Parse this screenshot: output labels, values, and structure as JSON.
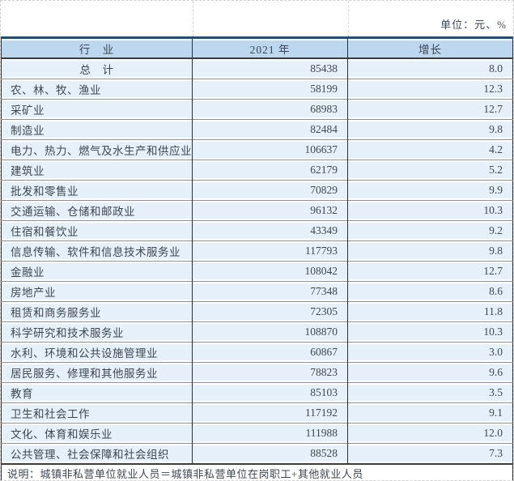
{
  "page": {
    "unit_label": "单位：元、%"
  },
  "table": {
    "columns": [
      {
        "label": "行　业"
      },
      {
        "label": "2021 年"
      },
      {
        "label": "增长"
      }
    ],
    "rows": [
      {
        "industry": "总　计",
        "value": "85438",
        "growth": "8.0",
        "total": true
      },
      {
        "industry": "农、林、牧、渔业",
        "value": "58199",
        "growth": "12.3"
      },
      {
        "industry": "采矿业",
        "value": "68983",
        "growth": "12.7"
      },
      {
        "industry": "制造业",
        "value": "82484",
        "growth": "9.8"
      },
      {
        "industry": "电力、热力、燃气及水生产和供应业",
        "value": "106637",
        "growth": "4.2"
      },
      {
        "industry": "建筑业",
        "value": "62179",
        "growth": "5.2"
      },
      {
        "industry": "批发和零售业",
        "value": "70829",
        "growth": "9.9"
      },
      {
        "industry": "交通运输、仓储和邮政业",
        "value": "96132",
        "growth": "10.3"
      },
      {
        "industry": "住宿和餐饮业",
        "value": "43349",
        "growth": "9.2"
      },
      {
        "industry": "信息传输、软件和信息技术服务业",
        "value": "117793",
        "growth": "9.8"
      },
      {
        "industry": "金融业",
        "value": "108042",
        "growth": "12.7"
      },
      {
        "industry": "房地产业",
        "value": "77348",
        "growth": "8.6"
      },
      {
        "industry": "租赁和商务服务业",
        "value": "72305",
        "growth": "11.8"
      },
      {
        "industry": "科学研究和技术服务业",
        "value": "108870",
        "growth": "10.3"
      },
      {
        "industry": "水利、环境和公共设施管理业",
        "value": "60867",
        "growth": "3.0"
      },
      {
        "industry": "居民服务、修理和其他服务业",
        "value": "78823",
        "growth": "9.6"
      },
      {
        "industry": "教育",
        "value": "85103",
        "growth": "3.5"
      },
      {
        "industry": "卫生和社会工作",
        "value": "117192",
        "growth": "9.1"
      },
      {
        "industry": "文化、体育和娱乐业",
        "value": "111988",
        "growth": "12.0"
      },
      {
        "industry": "公共管理、社会保障和社会组织",
        "value": "88528",
        "growth": "7.3"
      }
    ],
    "note": "说明：城镇非私营单位就业人员＝城镇非私营单位在岗职工+其他就业人员"
  },
  "colors": {
    "header_bg": "#bdd7ee",
    "row_bg": "#e6f0fa",
    "table_top_border": "#1f4e79",
    "grid_dark": "#2e2e2e",
    "row_separator": "#8a9099",
    "text": "#3e4752"
  }
}
